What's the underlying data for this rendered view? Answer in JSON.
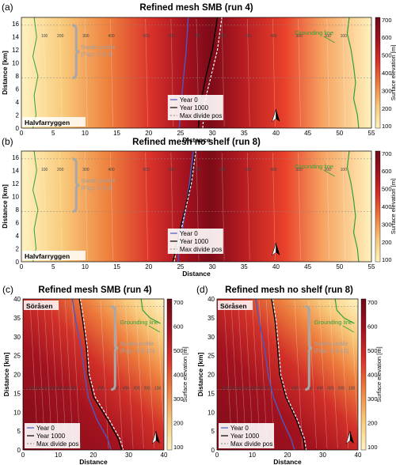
{
  "colors": {
    "surface_low": "#fff3c0",
    "surface_mid": "#e8402a",
    "surface_high": "#7d0b18",
    "divide_year0": "#4a5ac0",
    "divide_year1000": "#000000",
    "max_divide": "#ffffff",
    "grounding_line": "#2fa23a",
    "contour": "#ffffff",
    "swath": "#a8a8a8",
    "swath_text": "#a0a0a0"
  },
  "icons": {
    "north_arrow": "north-arrow-icon"
  },
  "colorbar": {
    "label": "Surface elevation [m]",
    "ticks_top": [
      700,
      600,
      500,
      400,
      300,
      200,
      100
    ]
  },
  "chart_data": [
    {
      "type": "heatmap",
      "panel_label": "(a)",
      "title": "Refined mesh SMB (run 4)",
      "xlabel": "Distance",
      "ylabel": "Distance [km]",
      "xlim": [
        0,
        55
      ],
      "ylim": [
        0,
        17
      ],
      "xticks": [
        0,
        5,
        10,
        15,
        20,
        25,
        30,
        35,
        40,
        45,
        50,
        55
      ],
      "yticks": [
        0,
        2,
        4,
        6,
        8,
        10,
        12,
        14,
        16
      ],
      "colorbar_ticks": [
        700,
        600,
        500,
        400,
        300,
        200,
        100
      ],
      "place_label": "Halvfarryggen",
      "swath_label": [
        "Swath profile",
        "(Figs. 6,8,9)"
      ],
      "grounding_label": "Grounding line",
      "legend": [
        "Year 0",
        "Year 1000",
        "Max divide pos"
      ],
      "contour_labels": [
        "100",
        "200",
        "300",
        "400",
        "500",
        "600",
        "700",
        "600",
        "500",
        "400",
        "300",
        "200",
        "100"
      ],
      "swath_y": [
        7.7,
        15.8
      ],
      "divide_year0": [
        [
          24.8,
          0
        ],
        [
          25.1,
          4
        ],
        [
          25.5,
          8
        ],
        [
          25.9,
          12
        ],
        [
          26.2,
          17
        ]
      ],
      "divide_year1000": [
        [
          27.8,
          0
        ],
        [
          28.2,
          4
        ],
        [
          29,
          8
        ],
        [
          30,
          12
        ],
        [
          30.8,
          17
        ]
      ],
      "max_divide": [
        [
          28.5,
          0
        ],
        [
          28.8,
          4
        ],
        [
          29.8,
          8
        ],
        [
          30.8,
          12
        ],
        [
          31.5,
          17
        ]
      ]
    },
    {
      "type": "heatmap",
      "panel_label": "(b)",
      "title": "Refined mesh no shelf (run 8)",
      "xlabel": "Distance",
      "ylabel": "Distance [km]",
      "xlim": [
        0,
        55
      ],
      "ylim": [
        0,
        17
      ],
      "xticks": [
        0,
        5,
        10,
        15,
        20,
        25,
        30,
        35,
        40,
        45,
        50,
        55
      ],
      "yticks": [
        0,
        2,
        4,
        6,
        8,
        10,
        12,
        14,
        16
      ],
      "colorbar_ticks": [
        700,
        600,
        500,
        400,
        300,
        200,
        100
      ],
      "place_label": "Halvfarryggen",
      "swath_label": [
        "Swath profile",
        "(Figs. 6,8,9)"
      ],
      "grounding_label": "Grounding line",
      "legend": [
        "Year 0",
        "Year 1000",
        "Max divide pos"
      ],
      "contour_labels": [
        "100",
        "200",
        "300",
        "400",
        "500",
        "600",
        "700",
        "600",
        "500",
        "400",
        "300",
        "200",
        "100"
      ],
      "swath_y": [
        7.7,
        15.8
      ],
      "divide_year0": [
        [
          24.6,
          0
        ],
        [
          25.1,
          4
        ],
        [
          25.8,
          8
        ],
        [
          26.4,
          12
        ],
        [
          27,
          17
        ]
      ],
      "divide_year1000": [
        [
          23.8,
          0
        ],
        [
          24.7,
          4
        ],
        [
          25.7,
          8
        ],
        [
          26.6,
          12
        ],
        [
          27.3,
          17
        ]
      ],
      "max_divide": [
        [
          24,
          0
        ],
        [
          24.9,
          4
        ],
        [
          25.8,
          8
        ],
        [
          26.7,
          12
        ],
        [
          27.4,
          17
        ]
      ]
    },
    {
      "type": "heatmap",
      "panel_label": "(c)",
      "title": "Refined mesh SMB (run 4)",
      "xlabel": "Distance",
      "ylabel": "Distance [km]",
      "xlim": [
        0,
        40
      ],
      "ylim": [
        0,
        40
      ],
      "xticks": [
        0,
        10,
        20,
        30,
        40
      ],
      "yticks": [
        0,
        5,
        10,
        15,
        20,
        25,
        30,
        35,
        40
      ],
      "colorbar_ticks": [
        700,
        600,
        500,
        400,
        300,
        200,
        100
      ],
      "place_label": "Söråsen",
      "swath_label": [
        "Swath profile",
        "(Figs. 6,8,10)"
      ],
      "grounding_label": "Grounding line",
      "legend": [
        "Year 0",
        "Year 1000",
        "Max divide pos"
      ],
      "contour_labels": [
        "100",
        "200",
        "300",
        "400",
        "500",
        "600",
        "700",
        "600",
        "500",
        "400",
        "300",
        "200",
        "100"
      ],
      "swath_y": [
        16,
        38
      ],
      "divide_year0": [
        [
          14,
          40
        ],
        [
          15,
          34
        ],
        [
          16.5,
          27
        ],
        [
          17.5,
          20
        ],
        [
          18.5,
          14
        ],
        [
          21,
          8
        ],
        [
          24,
          3
        ],
        [
          25,
          0
        ]
      ],
      "divide_year1000": [
        [
          16,
          40
        ],
        [
          17,
          34
        ],
        [
          18,
          27
        ],
        [
          18.5,
          20
        ],
        [
          20,
          14
        ],
        [
          24,
          8
        ],
        [
          27,
          3
        ],
        [
          28,
          0
        ]
      ],
      "max_divide": [
        [
          16.3,
          40
        ],
        [
          17.3,
          34
        ],
        [
          18.3,
          27
        ],
        [
          18.8,
          20
        ],
        [
          20.5,
          14
        ],
        [
          24.5,
          8
        ],
        [
          27.5,
          3
        ],
        [
          28.5,
          0
        ]
      ]
    },
    {
      "type": "heatmap",
      "panel_label": "(d)",
      "title": "Refined mesh no shelf (run 8)",
      "xlabel": "Distance",
      "ylabel": "Distance [km]",
      "xlim": [
        0,
        40
      ],
      "ylim": [
        0,
        40
      ],
      "xticks": [
        0,
        10,
        20,
        30,
        40
      ],
      "yticks": [
        0,
        5,
        10,
        15,
        20,
        25,
        30,
        35,
        40
      ],
      "colorbar_ticks": [
        700,
        600,
        500,
        400,
        300,
        200,
        100
      ],
      "place_label": "Söråsen",
      "swath_label": [
        "Swath profile",
        "(Figs. 6,8,10)"
      ],
      "grounding_label": "Grounding line",
      "legend": [
        "Year 0",
        "Year 1000",
        "Max divide pos"
      ],
      "contour_labels": [
        "100",
        "200",
        "300",
        "400",
        "500",
        "600",
        "700",
        "600",
        "500",
        "400",
        "300",
        "200",
        "100"
      ],
      "swath_y": [
        16,
        38
      ],
      "divide_year0": [
        [
          11,
          40
        ],
        [
          12,
          34
        ],
        [
          13.5,
          27
        ],
        [
          14.5,
          20
        ],
        [
          16,
          14
        ],
        [
          18.5,
          8
        ],
        [
          21,
          3
        ],
        [
          22,
          0
        ]
      ],
      "divide_year1000": [
        [
          15.5,
          40
        ],
        [
          16.5,
          34
        ],
        [
          17.2,
          27
        ],
        [
          17.8,
          20
        ],
        [
          19.5,
          14
        ],
        [
          22.5,
          8
        ],
        [
          24.5,
          3
        ],
        [
          25,
          0
        ]
      ],
      "max_divide": [
        [
          15.8,
          40
        ],
        [
          16.8,
          34
        ],
        [
          17.5,
          27
        ],
        [
          18.1,
          20
        ],
        [
          19.8,
          14
        ],
        [
          22.8,
          8
        ],
        [
          24.8,
          3
        ],
        [
          25.3,
          0
        ]
      ]
    }
  ]
}
